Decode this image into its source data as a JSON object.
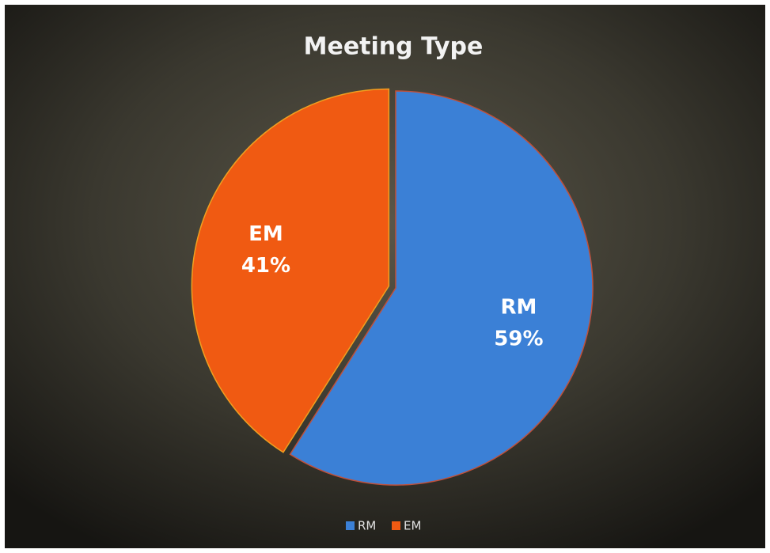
{
  "chart_data": {
    "type": "pie",
    "title": "Meeting Type",
    "categories": [
      "RM",
      "EM"
    ],
    "values": [
      59,
      41
    ],
    "value_labels": [
      "59%",
      "41%"
    ],
    "colors": [
      "#3b80d6",
      "#f05a12"
    ],
    "legend": "bottom"
  }
}
